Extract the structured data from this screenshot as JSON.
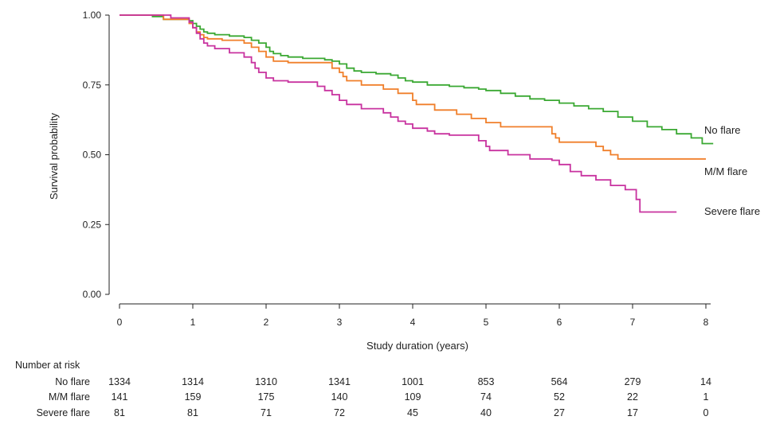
{
  "chart_data": {
    "type": "line",
    "step": true,
    "title": "",
    "xlabel": "Study duration (years)",
    "ylabel": "Survival probability",
    "xlim": [
      0,
      8
    ],
    "ylim": [
      0,
      1
    ],
    "x_ticks": [
      0,
      1,
      2,
      3,
      4,
      5,
      6,
      7,
      8
    ],
    "x_tick_labels": [
      "0",
      "1",
      "2",
      "3",
      "4",
      "5",
      "6",
      "7",
      "8"
    ],
    "y_ticks": [
      0,
      0.25,
      0.5,
      0.75,
      1.0
    ],
    "y_tick_labels": [
      "0.00",
      "0.25",
      "0.50",
      "0.75",
      "1.00"
    ],
    "grid": false,
    "series": [
      {
        "name": "No flare",
        "color": "#3aa832",
        "x": [
          0,
          0.45,
          0.6,
          0.95,
          1.0,
          1.05,
          1.1,
          1.15,
          1.2,
          1.3,
          1.5,
          1.7,
          1.8,
          1.9,
          2.0,
          2.05,
          2.1,
          2.2,
          2.3,
          2.5,
          2.8,
          2.9,
          3.0,
          3.1,
          3.2,
          3.3,
          3.5,
          3.7,
          3.8,
          3.9,
          4.0,
          4.2,
          4.5,
          4.7,
          4.9,
          5.0,
          5.2,
          5.4,
          5.6,
          5.8,
          6.0,
          6.2,
          6.4,
          6.6,
          6.8,
          7.0,
          7.2,
          7.4,
          7.6,
          7.8,
          7.95,
          8.1
        ],
        "y": [
          1.0,
          0.995,
          0.985,
          0.98,
          0.97,
          0.96,
          0.95,
          0.94,
          0.935,
          0.93,
          0.925,
          0.92,
          0.91,
          0.9,
          0.885,
          0.87,
          0.862,
          0.855,
          0.85,
          0.845,
          0.84,
          0.835,
          0.825,
          0.81,
          0.8,
          0.795,
          0.79,
          0.785,
          0.775,
          0.765,
          0.76,
          0.75,
          0.745,
          0.74,
          0.735,
          0.73,
          0.72,
          0.71,
          0.7,
          0.695,
          0.685,
          0.675,
          0.665,
          0.655,
          0.635,
          0.62,
          0.6,
          0.59,
          0.575,
          0.56,
          0.54,
          0.54
        ]
      },
      {
        "name": "M/M flare",
        "color": "#f07f2a",
        "x": [
          0,
          0.6,
          0.95,
          1.0,
          1.05,
          1.1,
          1.15,
          1.2,
          1.4,
          1.7,
          1.8,
          1.9,
          2.0,
          2.1,
          2.3,
          2.9,
          3.0,
          3.05,
          3.1,
          3.3,
          3.6,
          3.8,
          4.0,
          4.05,
          4.3,
          4.6,
          4.8,
          5.0,
          5.2,
          5.4,
          5.9,
          5.95,
          6.0,
          6.5,
          6.6,
          6.7,
          6.8,
          7.2,
          7.5,
          8.0
        ],
        "y": [
          1.0,
          0.985,
          0.97,
          0.955,
          0.94,
          0.93,
          0.92,
          0.915,
          0.91,
          0.9,
          0.885,
          0.87,
          0.85,
          0.835,
          0.83,
          0.81,
          0.795,
          0.78,
          0.765,
          0.75,
          0.735,
          0.72,
          0.695,
          0.68,
          0.66,
          0.645,
          0.63,
          0.615,
          0.6,
          0.6,
          0.575,
          0.56,
          0.545,
          0.53,
          0.515,
          0.5,
          0.485,
          0.485,
          0.485,
          0.485
        ]
      },
      {
        "name": "Severe flare",
        "color": "#c8329f",
        "x": [
          0,
          0.7,
          0.95,
          1.0,
          1.05,
          1.1,
          1.15,
          1.2,
          1.3,
          1.5,
          1.7,
          1.8,
          1.85,
          1.9,
          2.0,
          2.1,
          2.3,
          2.7,
          2.8,
          2.9,
          3.0,
          3.1,
          3.3,
          3.6,
          3.7,
          3.8,
          3.9,
          4.0,
          4.2,
          4.3,
          4.5,
          4.9,
          5.0,
          5.05,
          5.3,
          5.6,
          5.9,
          6.0,
          6.15,
          6.3,
          6.5,
          6.7,
          6.9,
          7.05,
          7.1,
          7.6
        ],
        "y": [
          1.0,
          0.99,
          0.975,
          0.955,
          0.935,
          0.915,
          0.9,
          0.89,
          0.88,
          0.865,
          0.85,
          0.83,
          0.81,
          0.795,
          0.775,
          0.765,
          0.76,
          0.745,
          0.73,
          0.715,
          0.695,
          0.68,
          0.665,
          0.65,
          0.635,
          0.62,
          0.61,
          0.595,
          0.585,
          0.575,
          0.57,
          0.55,
          0.53,
          0.515,
          0.5,
          0.485,
          0.48,
          0.465,
          0.44,
          0.425,
          0.41,
          0.39,
          0.375,
          0.34,
          0.295,
          0.295
        ]
      }
    ],
    "series_labels": [
      "No flare",
      "M/M flare",
      "Severe flare"
    ],
    "risk_table": {
      "heading": "Number at risk",
      "time_points": [
        0,
        1,
        2,
        3,
        4,
        5,
        6,
        7,
        8
      ],
      "rows": [
        {
          "label": "No flare",
          "values": [
            "1334",
            "1314",
            "1310",
            "1341",
            "1001",
            "853",
            "564",
            "279",
            "14"
          ]
        },
        {
          "label": "M/M flare",
          "values": [
            "141",
            "159",
            "175",
            "140",
            "109",
            "74",
            "52",
            "22",
            "1"
          ]
        },
        {
          "label": "Severe flare",
          "values": [
            "81",
            "81",
            "71",
            "72",
            "45",
            "40",
            "27",
            "17",
            "0"
          ]
        }
      ]
    }
  }
}
